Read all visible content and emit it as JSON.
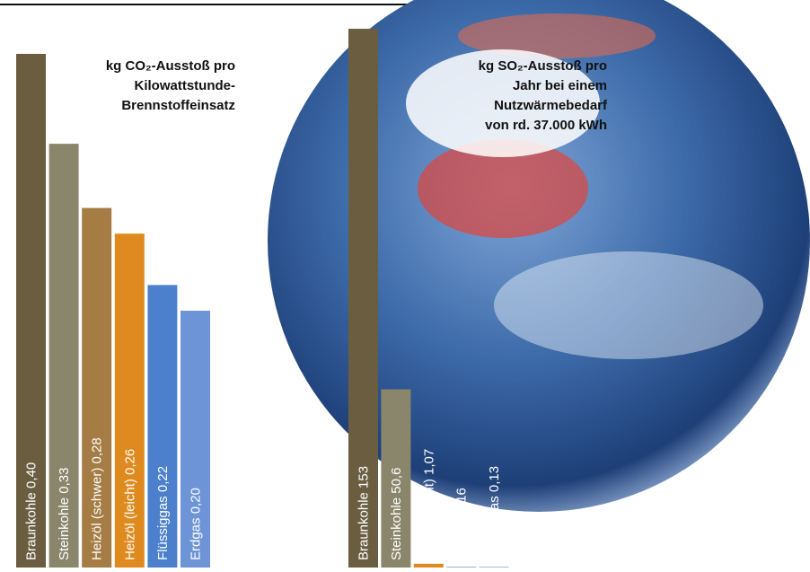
{
  "chart_data": [
    {
      "type": "bar",
      "title": [
        "kg CO₂-Ausstoß pro",
        "Kilowattstunde-",
        "Brennstoffeinsatz"
      ],
      "categories": [
        "Braunkohle",
        "Steinkohle",
        "Heizöl (schwer)",
        "Heizöl (leicht)",
        "Flüssiggas",
        "Erdgas"
      ],
      "values": [
        0.4,
        0.33,
        0.28,
        0.26,
        0.22,
        0.2
      ],
      "value_labels": [
        "0,40",
        "0,33",
        "0,28",
        "0,26",
        "0,22",
        "0,20"
      ],
      "colors": [
        "#6b5e40",
        "#8a866c",
        "#a47c44",
        "#de8a1e",
        "#4c80cc",
        "#6d94d6"
      ]
    },
    {
      "type": "bar",
      "title": [
        "kg SO₂-Ausstoß pro",
        "Jahr bei einem",
        "Nutzwärmebedarf",
        "von rd. 37.000 kWh"
      ],
      "categories": [
        "Braunkohle",
        "Steinkohle",
        "Heizöl (leicht)",
        "Erdgas",
        "Flüssiggas"
      ],
      "values": [
        153,
        50.6,
        1.07,
        0.16,
        0.13
      ],
      "value_labels": [
        "153",
        "50,6",
        "1,07",
        "0,16",
        "0,13"
      ],
      "colors": [
        "#6b5e40",
        "#8a866c",
        "#de8a1e",
        "#5a82c8",
        "#4a72c2"
      ]
    }
  ]
}
